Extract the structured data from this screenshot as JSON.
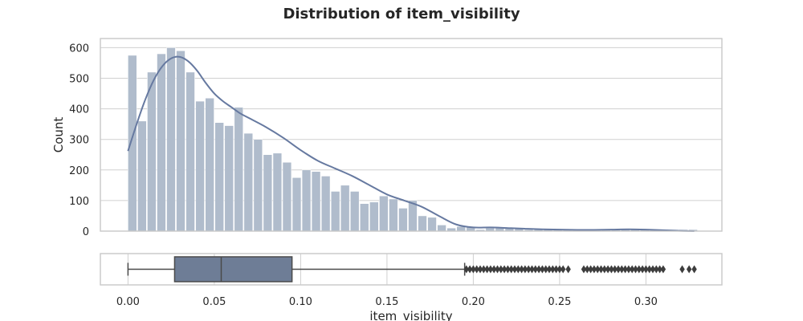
{
  "chart_data": [
    {
      "type": "bar",
      "title": "Distribution of item_visibility",
      "xlabel": "item_visibility",
      "ylabel": "Count",
      "xlim": [
        -0.016,
        0.344
      ],
      "ylim": [
        0,
        630
      ],
      "yticks": [
        0,
        100,
        200,
        300,
        400,
        500,
        600
      ],
      "bar_color": "#b0bccc",
      "kde_color": "#6679a0",
      "grid": true,
      "bins": {
        "start": 0.0,
        "width": 0.0056,
        "counts": [
          575,
          360,
          520,
          580,
          600,
          590,
          520,
          425,
          435,
          355,
          345,
          405,
          320,
          300,
          250,
          255,
          225,
          175,
          200,
          195,
          180,
          130,
          150,
          130,
          90,
          95,
          115,
          105,
          75,
          100,
          50,
          45,
          20,
          10,
          15,
          15,
          5,
          10,
          10,
          10,
          10,
          5,
          5,
          5,
          5,
          5,
          5,
          5,
          5,
          5,
          5,
          5,
          5,
          5,
          5,
          5,
          5,
          5,
          5
        ]
      },
      "kde": {
        "x": [
          0.0,
          0.005,
          0.01,
          0.015,
          0.02,
          0.025,
          0.03,
          0.035,
          0.04,
          0.045,
          0.05,
          0.055,
          0.06,
          0.065,
          0.07,
          0.08,
          0.09,
          0.1,
          0.11,
          0.12,
          0.13,
          0.14,
          0.15,
          0.16,
          0.17,
          0.18,
          0.19,
          0.2,
          0.21,
          0.22,
          0.23,
          0.24,
          0.25,
          0.26,
          0.27,
          0.28,
          0.29,
          0.3,
          0.31,
          0.32,
          0.328
        ],
        "y": [
          262,
          350,
          430,
          495,
          540,
          565,
          570,
          555,
          525,
          485,
          450,
          425,
          405,
          385,
          370,
          340,
          305,
          265,
          230,
          205,
          180,
          150,
          120,
          100,
          80,
          50,
          22,
          12,
          12,
          10,
          8,
          6,
          5,
          4,
          4,
          5,
          6,
          5,
          3,
          1,
          0
        ]
      }
    },
    {
      "type": "box",
      "xlabel": "item_visibility",
      "xticks": [
        "0.00",
        "0.05",
        "0.10",
        "0.15",
        "0.20",
        "0.25",
        "0.30"
      ],
      "box_color": "#6e7d96",
      "whisker_low": 0.0,
      "q1": 0.027,
      "median": 0.054,
      "q3": 0.095,
      "whisker_high": 0.195,
      "outliers": [
        0.196,
        0.198,
        0.2,
        0.202,
        0.204,
        0.206,
        0.208,
        0.21,
        0.212,
        0.214,
        0.216,
        0.218,
        0.22,
        0.222,
        0.224,
        0.226,
        0.228,
        0.23,
        0.232,
        0.234,
        0.236,
        0.238,
        0.24,
        0.242,
        0.244,
        0.246,
        0.248,
        0.25,
        0.252,
        0.255,
        0.264,
        0.266,
        0.268,
        0.27,
        0.272,
        0.274,
        0.276,
        0.278,
        0.28,
        0.282,
        0.284,
        0.286,
        0.288,
        0.29,
        0.292,
        0.294,
        0.296,
        0.298,
        0.3,
        0.302,
        0.304,
        0.306,
        0.308,
        0.31,
        0.321,
        0.325,
        0.328
      ]
    }
  ]
}
